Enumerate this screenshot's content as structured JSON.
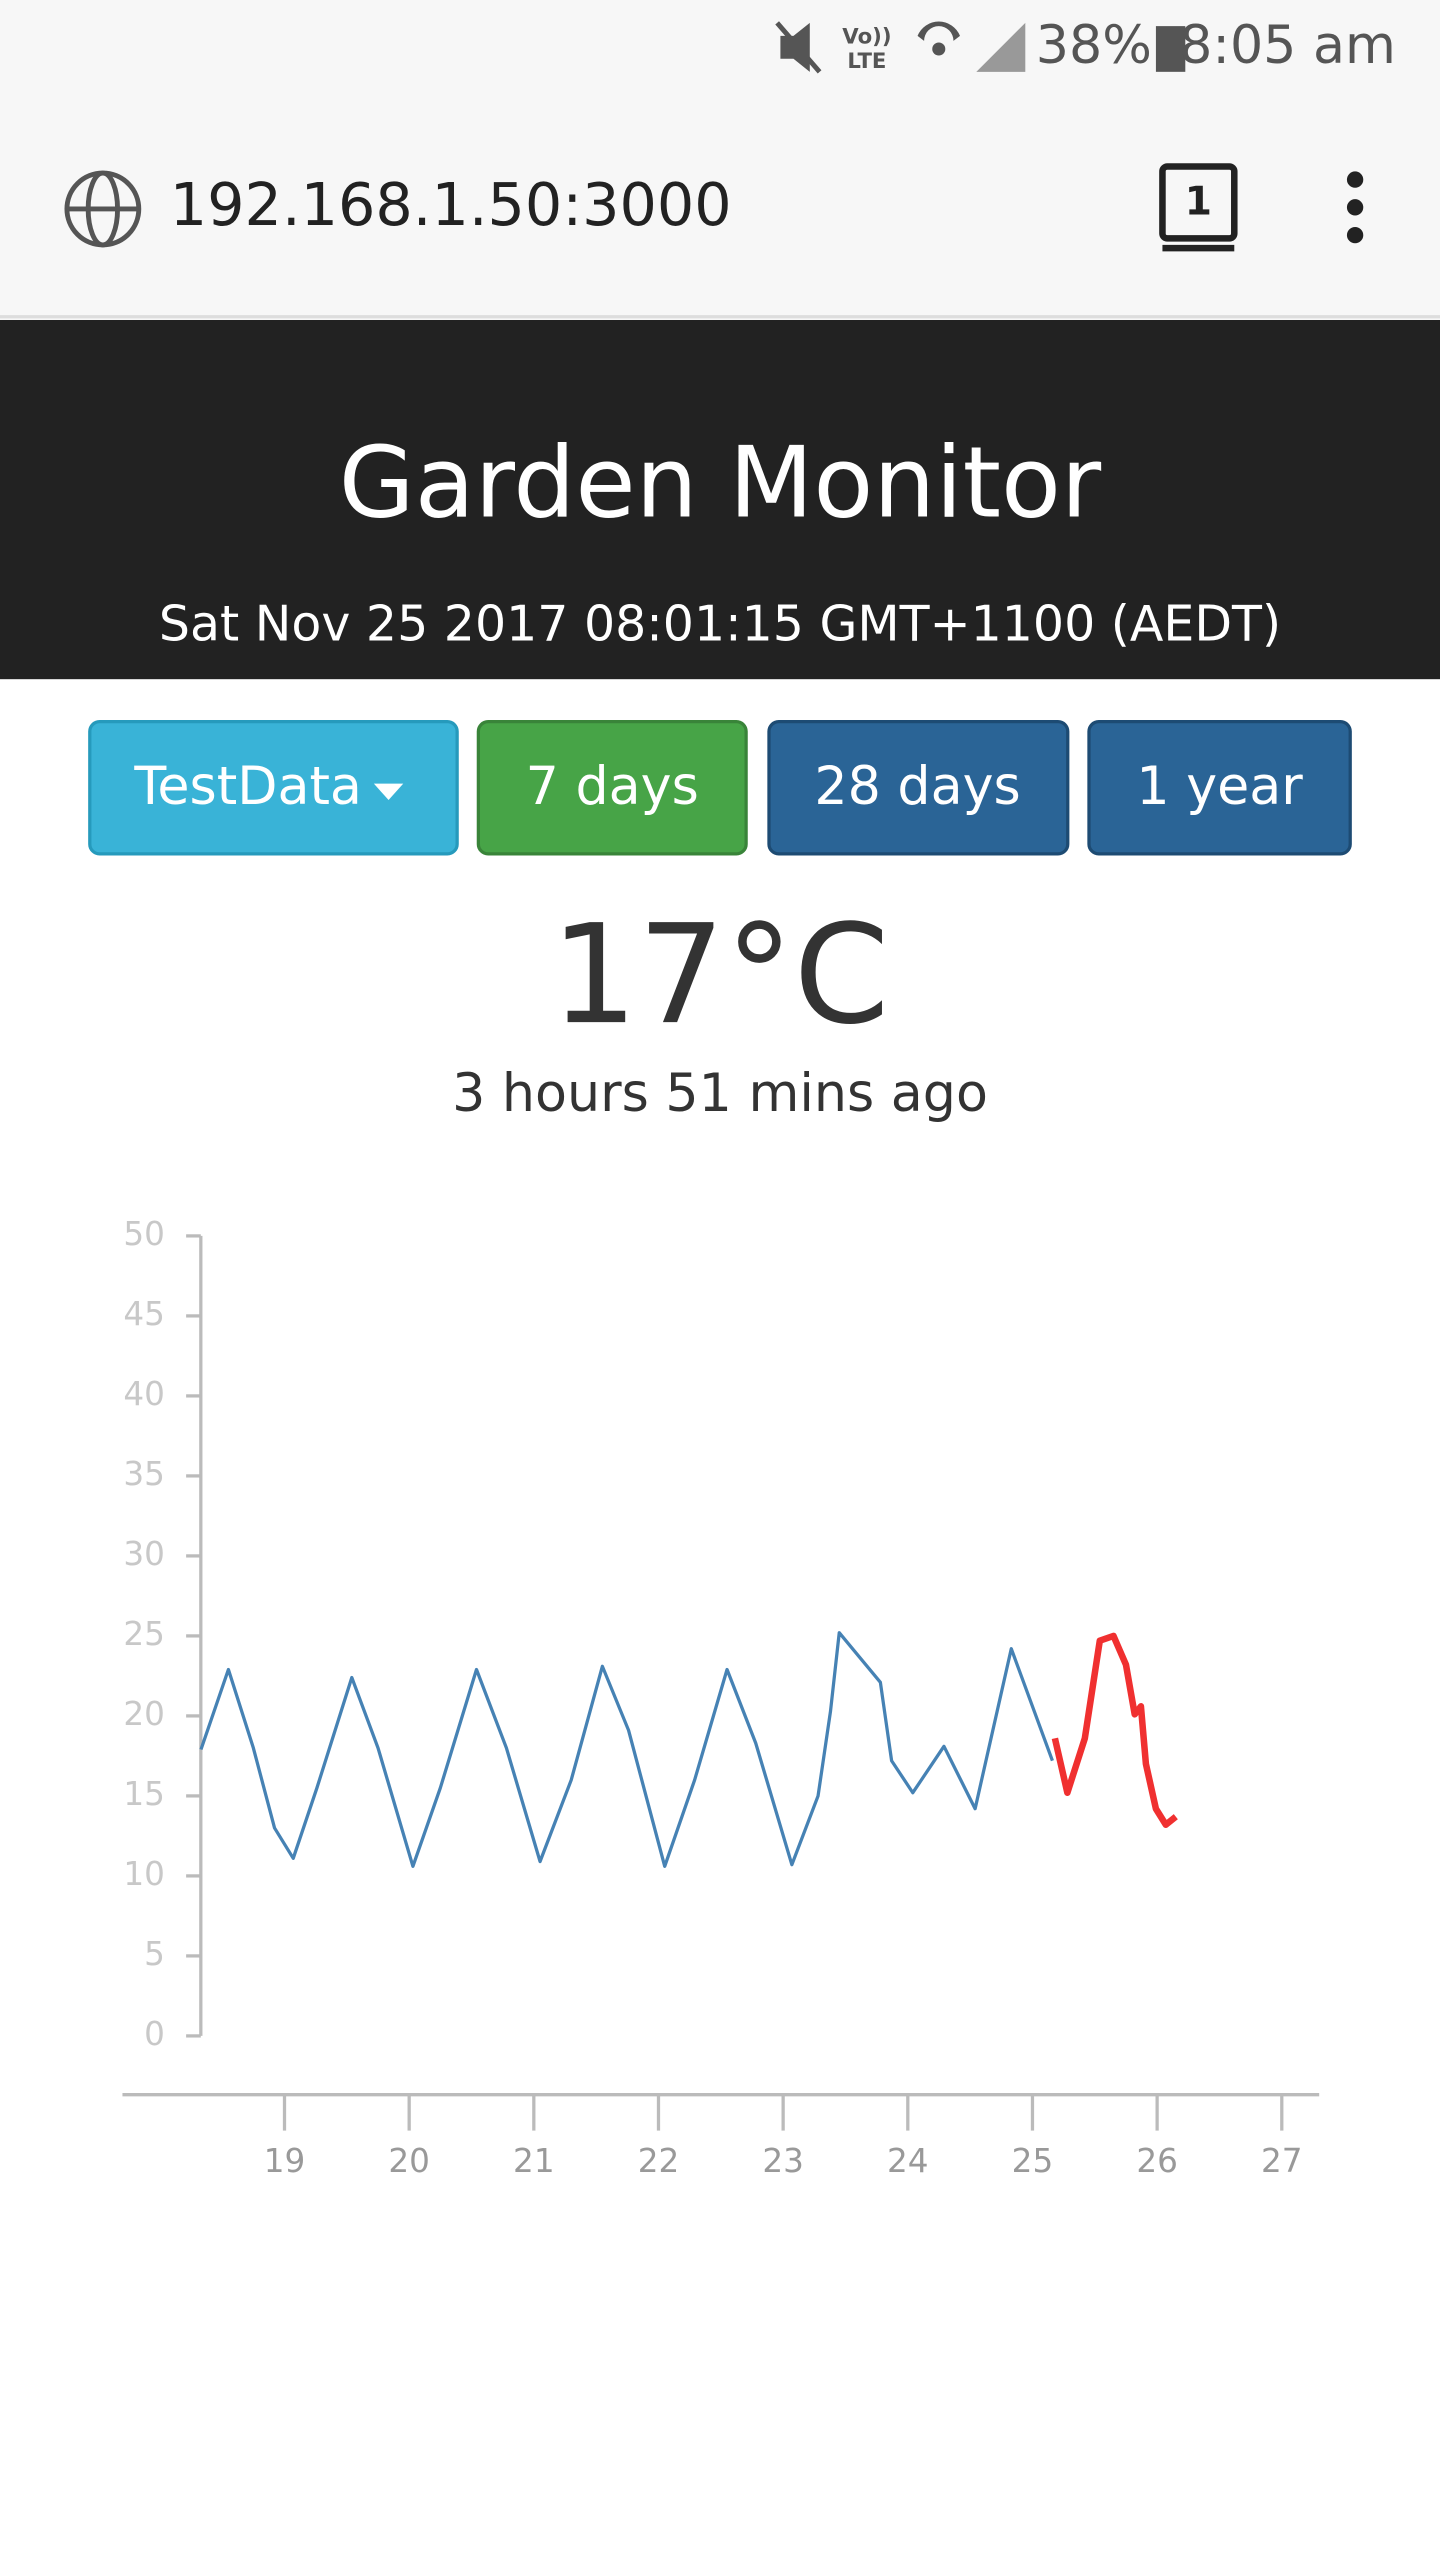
{
  "status_bar": {
    "battery": "38%",
    "time": "8:05 am"
  },
  "browser": {
    "url": "192.168.1.50:3000",
    "tab_count": "1"
  },
  "header": {
    "title": "Garden Monitor",
    "timestamp": "Sat Nov 25 2017 08:01:15 GMT+1100 (AEDT)"
  },
  "controls": {
    "sensor": "TestData",
    "ranges": [
      "7 days",
      "28 days",
      "1 year"
    ]
  },
  "reading": {
    "temperature": "17°C",
    "age": "3 hours 51 mins ago"
  },
  "chart_data": {
    "type": "line",
    "xlim": [
      17.7,
      27.3
    ],
    "xticks": [
      19,
      20,
      21,
      22,
      23,
      24,
      25,
      26,
      27
    ],
    "ylim": [
      0,
      50
    ],
    "yticks": [
      0,
      5,
      10,
      15,
      20,
      25,
      30,
      35,
      40,
      45,
      50
    ],
    "series": [
      {
        "color": "#4682b4",
        "x": [
          18.33,
          18.55,
          18.75,
          18.92,
          19.07,
          19.26,
          19.54,
          19.75,
          20.03,
          20.25,
          20.54,
          20.78,
          21.05,
          21.3,
          21.55,
          21.76,
          22.05,
          22.29,
          22.55,
          22.78,
          23.07,
          23.28,
          23.38,
          23.45,
          23.78,
          23.87,
          24.04,
          24.29,
          24.54,
          24.83,
          25.16
        ],
        "values": [
          17.9,
          22.9,
          18,
          13,
          11.1,
          15.5,
          22.4,
          18,
          10.6,
          15.5,
          22.9,
          18,
          10.9,
          16,
          23.1,
          19.1,
          10.6,
          16,
          22.9,
          18.3,
          10.7,
          15,
          20.3,
          25.2,
          22.1,
          17.2,
          15.2,
          18.1,
          14.2,
          24.2,
          17.2
        ]
      },
      {
        "color": "#f03030",
        "x": [
          25.18,
          25.28,
          25.42,
          25.54,
          25.65,
          25.75,
          25.82,
          25.87,
          25.91,
          25.99,
          26.07,
          26.15
        ],
        "values": [
          18.6,
          15.2,
          18.6,
          24.7,
          25,
          23.2,
          20.1,
          20.6,
          17,
          14.2,
          13.2,
          13.7
        ]
      }
    ]
  }
}
